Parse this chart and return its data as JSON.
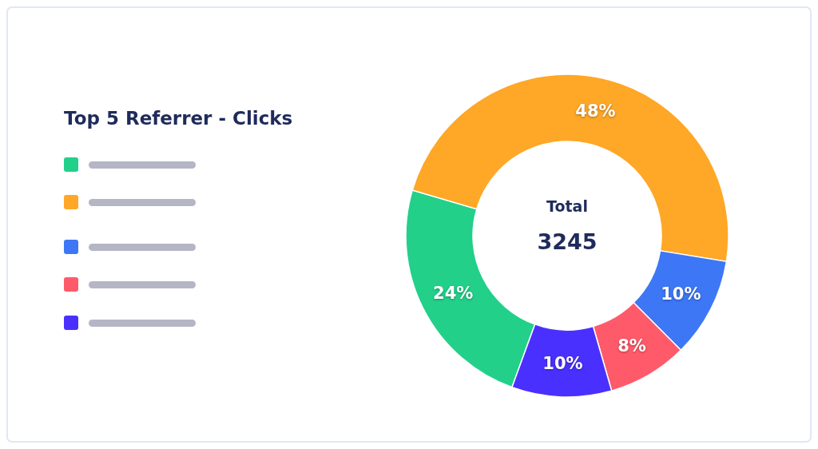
{
  "chart_data": {
    "type": "donut",
    "title": "Top 5 Referrer - Clicks",
    "categories": [
      null,
      null,
      null,
      null,
      null
    ],
    "values": [
      24,
      48,
      10,
      8,
      10
    ],
    "colors": [
      "#22d08a",
      "#ffa726",
      "#3d77f5",
      "#ff5a6a",
      "#4a30ff"
    ],
    "value_labels": [
      "24%",
      "48%",
      "10%",
      "8%",
      "10%"
    ],
    "annotations": [
      "Total",
      "3245"
    ]
  }
}
